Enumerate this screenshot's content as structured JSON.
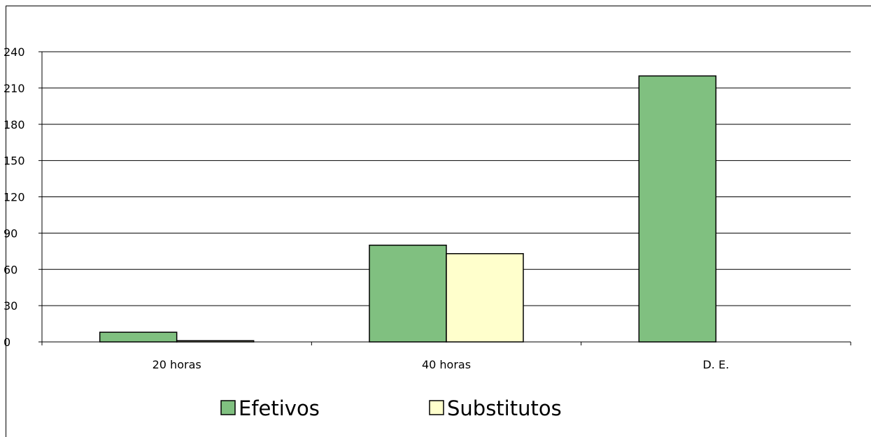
{
  "chart_data": {
    "type": "bar",
    "categories": [
      "20 horas",
      "40 horas",
      "D. E."
    ],
    "series": [
      {
        "name": "Efetivos",
        "values": [
          8,
          80,
          220
        ],
        "color": "#80c080"
      },
      {
        "name": "Substitutos",
        "values": [
          1,
          73,
          0
        ],
        "color": "#ffffcc"
      }
    ],
    "ylim": [
      0,
      240
    ],
    "yticks": [
      0,
      30,
      60,
      90,
      120,
      150,
      180,
      210,
      240
    ],
    "grid": true,
    "legend_position": "bottom"
  }
}
